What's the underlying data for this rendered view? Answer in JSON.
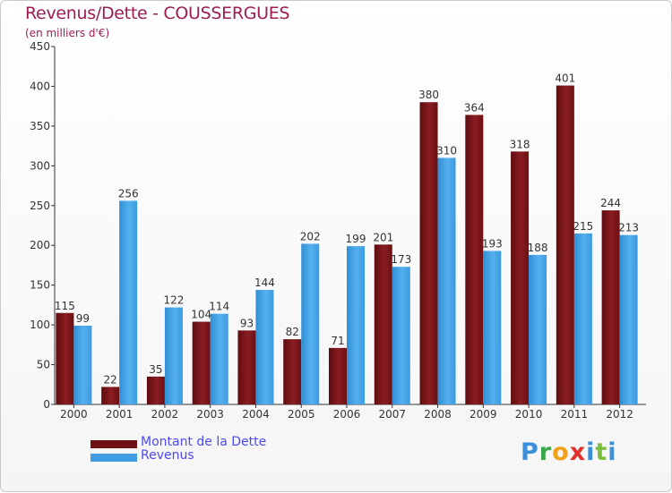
{
  "header": {
    "title": "Revenus/Dette - COUSSERGUES",
    "subtitle": "(en milliers d'€)"
  },
  "legend": {
    "debt_label": "Montant de la Dette",
    "revenue_label": "Revenus"
  },
  "logo": {
    "text": "Proxiti"
  },
  "colors": {
    "debt": "#7b1418",
    "revenue": "#3d9de0",
    "title": "#9e1c52",
    "legend_text": "#4a4af0"
  },
  "chart_data": {
    "type": "bar",
    "title": "Revenus/Dette - COUSSERGUES",
    "ylabel": "(en milliers d'€)",
    "xlabel": "",
    "categories": [
      "2000",
      "2001",
      "2002",
      "2003",
      "2004",
      "2005",
      "2006",
      "2007",
      "2008",
      "2009",
      "2010",
      "2011",
      "2012"
    ],
    "series": [
      {
        "name": "Montant de la Dette",
        "values": [
          115,
          22,
          35,
          104,
          93,
          82,
          71,
          201,
          380,
          364,
          318,
          401,
          244
        ]
      },
      {
        "name": "Revenus",
        "values": [
          99,
          256,
          122,
          114,
          144,
          202,
          199,
          173,
          310,
          193,
          188,
          215,
          213
        ]
      }
    ],
    "ylim": [
      0,
      450
    ],
    "yticks": [
      0,
      50,
      100,
      150,
      200,
      250,
      300,
      350,
      400,
      450
    ],
    "grid": false,
    "legend_position": "bottom-left"
  }
}
